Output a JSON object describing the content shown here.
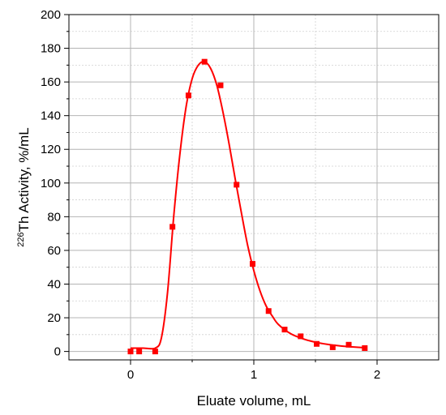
{
  "chart_data": {
    "type": "scatter",
    "title": "",
    "xlabel": "Eluate volume, mL",
    "ylabel": {
      "superscript": "226",
      "text": "Th Activity, %/mL"
    },
    "xlim": [
      -0.5,
      2.5
    ],
    "ylim": [
      -5,
      200
    ],
    "x_ticks": [
      0,
      1,
      2
    ],
    "x_tick_labels": [
      "0",
      "1",
      "2"
    ],
    "x_minor_grid": [
      0.5,
      1.5
    ],
    "y_ticks": [
      0,
      20,
      40,
      60,
      80,
      100,
      120,
      140,
      160,
      180,
      200
    ],
    "y_tick_labels": [
      "0",
      "20",
      "40",
      "60",
      "80",
      "100",
      "120",
      "140",
      "160",
      "180",
      "200"
    ],
    "y_minor_grid": [
      10,
      30,
      50,
      70,
      90,
      110,
      130,
      150,
      170,
      190
    ],
    "grid": true,
    "legend": "none",
    "series": [
      {
        "marker": "square",
        "color": "#ff0000",
        "points": [
          [
            0.0,
            0
          ],
          [
            0.07,
            0
          ],
          [
            0.2,
            0
          ],
          [
            0.34,
            74
          ],
          [
            0.47,
            152
          ],
          [
            0.6,
            172
          ],
          [
            0.73,
            158
          ],
          [
            0.86,
            99
          ],
          [
            0.99,
            52
          ],
          [
            1.12,
            24
          ],
          [
            1.25,
            13
          ],
          [
            1.38,
            9
          ],
          [
            1.51,
            4.5
          ],
          [
            1.64,
            2.5
          ],
          [
            1.77,
            4
          ],
          [
            1.9,
            2
          ]
        ]
      },
      {
        "type": "line",
        "color": "#ff0000",
        "smooth": true,
        "points": [
          [
            0.0,
            2
          ],
          [
            0.1,
            2
          ],
          [
            0.2,
            2
          ],
          [
            0.25,
            8
          ],
          [
            0.3,
            35
          ],
          [
            0.35,
            80
          ],
          [
            0.4,
            117
          ],
          [
            0.45,
            145
          ],
          [
            0.5,
            162
          ],
          [
            0.55,
            170
          ],
          [
            0.6,
            172
          ],
          [
            0.65,
            168
          ],
          [
            0.7,
            158
          ],
          [
            0.75,
            142
          ],
          [
            0.8,
            123
          ],
          [
            0.85,
            102
          ],
          [
            0.9,
            82
          ],
          [
            0.95,
            63
          ],
          [
            1.0,
            48
          ],
          [
            1.05,
            36
          ],
          [
            1.1,
            27
          ],
          [
            1.15,
            21
          ],
          [
            1.2,
            16
          ],
          [
            1.3,
            10.5
          ],
          [
            1.4,
            7.5
          ],
          [
            1.5,
            5.5
          ],
          [
            1.6,
            4.2
          ],
          [
            1.7,
            3.3
          ],
          [
            1.8,
            2.7
          ],
          [
            1.9,
            2.2
          ]
        ]
      }
    ]
  }
}
